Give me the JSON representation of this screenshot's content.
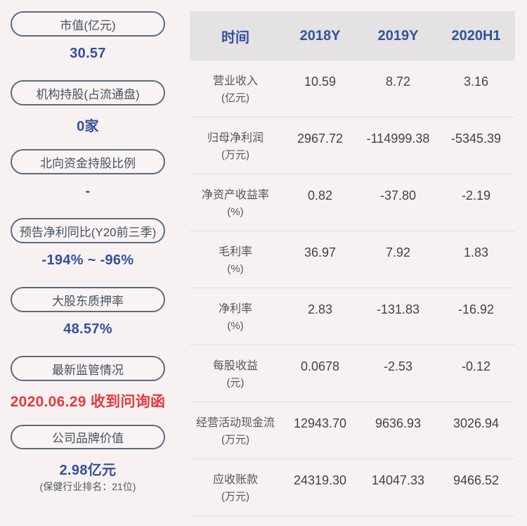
{
  "sidebar": {
    "items": [
      {
        "label": "市值(亿元)",
        "value": "30.57"
      },
      {
        "label": "机构持股(占流通盘)",
        "value": "0家"
      },
      {
        "label": "北向资金持股比例",
        "value": "-"
      },
      {
        "label": "预告净利同比(Y20前三季)",
        "value": "-194% ~ -96%"
      },
      {
        "label": "大股东质押率",
        "value": "48.57%"
      },
      {
        "label": "最新监管情况",
        "value": "2020.06.29 收到问询函"
      },
      {
        "label": "公司品牌价值",
        "value": "2.98亿元",
        "subtitle": "(保健行业排名：21位)"
      }
    ]
  },
  "table": {
    "header": {
      "time_label": "时间",
      "columns": [
        "2018Y",
        "2019Y",
        "2020H1"
      ]
    },
    "rows": [
      {
        "name": "营业收入",
        "unit": "(亿元)",
        "values": [
          "10.59",
          "8.72",
          "3.16"
        ]
      },
      {
        "name": "归母净利润",
        "unit": "(万元)",
        "values": [
          "2967.72",
          "-114999.38",
          "-5345.39"
        ]
      },
      {
        "name": "净资产收益率",
        "unit": "(%)",
        "values": [
          "0.82",
          "-37.80",
          "-2.19"
        ]
      },
      {
        "name": "毛利率",
        "unit": "(%)",
        "values": [
          "36.97",
          "7.92",
          "1.83"
        ]
      },
      {
        "name": "净利率",
        "unit": "(%)",
        "values": [
          "2.83",
          "-131.83",
          "-16.92"
        ]
      },
      {
        "name": "每股收益",
        "unit": "(元)",
        "values": [
          "0.0678",
          "-2.53",
          "-0.12"
        ]
      },
      {
        "name": "经营活动现金流",
        "unit": "(万元)",
        "values": [
          "12943.70",
          "9636.93",
          "3026.94"
        ]
      },
      {
        "name": "应收账款",
        "unit": "(万元)",
        "values": [
          "24319.30",
          "14047.33",
          "9466.52"
        ]
      }
    ]
  },
  "colors": {
    "background": "#f8f1f2",
    "pill_border": "#5d6b7b",
    "pill_text": "#46535f",
    "value_blue": "#32509d",
    "alert_red": "#e23b3c",
    "header_bg": "#e4e2e2",
    "header_text": "#3351a0",
    "row_label": "#51575d",
    "row_value": "#3e4349",
    "divider": "#e2dedf"
  }
}
